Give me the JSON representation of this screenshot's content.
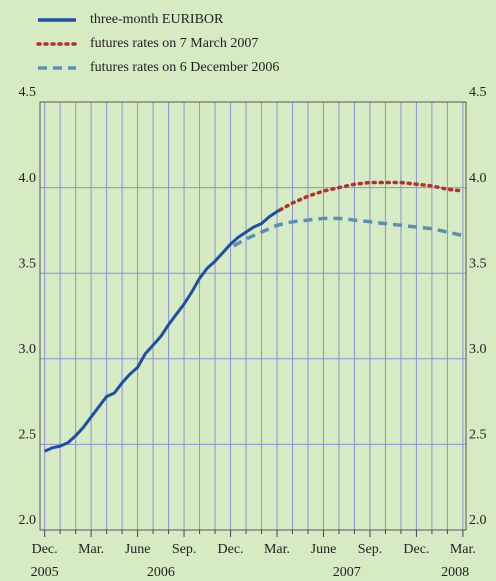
{
  "chart_data": {
    "type": "line",
    "series": [
      {
        "name": "three-month EURIBOR",
        "color": "#1f4f9e",
        "style": "solid",
        "x": [
          0,
          0.5,
          1,
          1.5,
          2,
          2.5,
          3,
          3.5,
          4,
          4.5,
          5,
          5.5,
          6,
          6.5,
          7,
          7.5,
          8,
          8.5,
          9,
          9.5,
          10,
          10.5,
          11,
          11.5,
          12,
          12.5,
          13,
          13.5,
          14,
          14.5,
          15,
          15.2
        ],
        "values": [
          2.46,
          2.48,
          2.49,
          2.51,
          2.55,
          2.6,
          2.66,
          2.72,
          2.78,
          2.8,
          2.86,
          2.91,
          2.95,
          3.03,
          3.08,
          3.13,
          3.2,
          3.26,
          3.32,
          3.39,
          3.47,
          3.53,
          3.57,
          3.62,
          3.67,
          3.71,
          3.74,
          3.77,
          3.79,
          3.83,
          3.86,
          3.87
        ]
      },
      {
        "name": "futures rates on 7 March 2007",
        "color": "#b0332b",
        "style": "dotted",
        "x": [
          15.2,
          16,
          17,
          18,
          19,
          20,
          21,
          22,
          23,
          24,
          25,
          26,
          27
        ],
        "values": [
          3.87,
          3.91,
          3.95,
          3.98,
          4.0,
          4.02,
          4.03,
          4.03,
          4.03,
          4.02,
          4.01,
          3.99,
          3.98
        ]
      },
      {
        "name": "futures rates on 6 December 2006",
        "color": "#5c90ad",
        "style": "dashed",
        "x": [
          12.2,
          13,
          14,
          15,
          16,
          17,
          18,
          19,
          20,
          21,
          22,
          23,
          24,
          25,
          26,
          27
        ],
        "values": [
          3.66,
          3.7,
          3.74,
          3.78,
          3.8,
          3.81,
          3.82,
          3.82,
          3.81,
          3.8,
          3.79,
          3.78,
          3.77,
          3.76,
          3.74,
          3.72
        ]
      }
    ],
    "xlim": [
      -0.3,
      27.2
    ],
    "xticks": [
      {
        "value": 0,
        "label": "Dec."
      },
      {
        "value": 3,
        "label": "Mar."
      },
      {
        "value": 6,
        "label": "June"
      },
      {
        "value": 9,
        "label": "Sep."
      },
      {
        "value": 12,
        "label": "Dec."
      },
      {
        "value": 15,
        "label": "Mar."
      },
      {
        "value": 18,
        "label": "June"
      },
      {
        "value": 21,
        "label": "Sep."
      },
      {
        "value": 24,
        "label": "Dec."
      },
      {
        "value": 27,
        "label": "Mar."
      }
    ],
    "year_labels": [
      {
        "value": 0,
        "label": "2005"
      },
      {
        "value": 7.5,
        "label": "2006"
      },
      {
        "value": 19.5,
        "label": "2007"
      },
      {
        "value": 26.5,
        "label": "2008"
      }
    ],
    "xgrid": [
      0,
      1,
      2,
      3,
      4,
      5,
      6,
      7,
      8,
      9,
      10,
      11,
      12,
      13,
      14,
      15,
      16,
      17,
      18,
      19,
      20,
      21,
      22,
      23,
      24,
      25,
      26,
      27
    ],
    "ylim": [
      2.0,
      4.5
    ],
    "yticks": [
      {
        "value": 2.0,
        "label": "2.0"
      },
      {
        "value": 2.5,
        "label": "2.5"
      },
      {
        "value": 3.0,
        "label": "3.0"
      },
      {
        "value": 3.5,
        "label": "3.5"
      },
      {
        "value": 4.0,
        "label": "4.0"
      },
      {
        "value": 4.5,
        "label": "4.5"
      }
    ],
    "grid": true
  }
}
